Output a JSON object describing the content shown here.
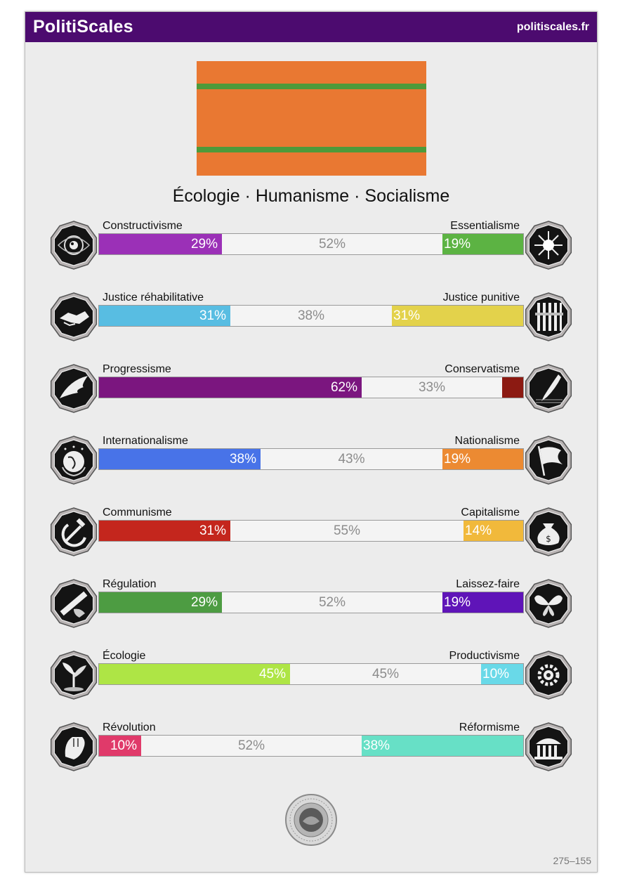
{
  "header": {
    "brand": "PolitiScales",
    "site": "politiscales.fr"
  },
  "flag": {
    "background": "#e97832",
    "stripe_color": "#4e9a3a"
  },
  "slogan": "Écologie · Humanisme · Socialisme",
  "axes": [
    {
      "left_label": "Constructivisme",
      "right_label": "Essentialisme",
      "left_pct": 29,
      "mid_pct": 52,
      "right_pct": 19,
      "left_color": "#9b30b7",
      "right_color": "#5cb343",
      "left_text": "29%",
      "mid_text": "52%",
      "right_text": "19%",
      "left_icon": "eye-icon",
      "right_icon": "dna-flower-icon"
    },
    {
      "left_label": "Justice réhabilitative",
      "right_label": "Justice punitive",
      "left_pct": 31,
      "mid_pct": 38,
      "right_pct": 31,
      "left_color": "#58bde2",
      "right_color": "#e3d24b",
      "left_text": "31%",
      "mid_text": "38%",
      "right_text": "31%",
      "left_icon": "handshake-icon",
      "right_icon": "prison-bars-icon"
    },
    {
      "left_label": "Progressisme",
      "right_label": "Conservatisme",
      "left_pct": 62,
      "mid_pct": 33,
      "right_pct": 5,
      "left_color": "#7b167f",
      "right_color": "#8c1a12",
      "left_text": "62%",
      "mid_text": "33%",
      "right_text": "",
      "left_icon": "wing-icon",
      "right_icon": "quill-pen-icon"
    },
    {
      "left_label": "Internationalisme",
      "right_label": "Nationalisme",
      "left_pct": 38,
      "mid_pct": 43,
      "right_pct": 19,
      "left_color": "#4873e8",
      "right_color": "#ec8a32",
      "left_text": "38%",
      "mid_text": "43%",
      "right_text": "19%",
      "left_icon": "globe-icon",
      "right_icon": "flag-icon"
    },
    {
      "left_label": "Communisme",
      "right_label": "Capitalisme",
      "left_pct": 31,
      "mid_pct": 55,
      "right_pct": 14,
      "left_color": "#c4261d",
      "right_color": "#f1b93b",
      "left_text": "31%",
      "mid_text": "55%",
      "right_text": "14%",
      "left_icon": "hammer-sickle-icon",
      "right_icon": "money-bag-icon"
    },
    {
      "left_label": "Régulation",
      "right_label": "Laissez-faire",
      "left_pct": 29,
      "mid_pct": 52,
      "right_pct": 19,
      "left_color": "#4d9c42",
      "right_color": "#5f14b8",
      "left_text": "29%",
      "mid_text": "52%",
      "right_text": "19%",
      "left_icon": "ruler-hand-icon",
      "right_icon": "butterfly-icon"
    },
    {
      "left_label": "Écologie",
      "right_label": "Productivisme",
      "left_pct": 45,
      "mid_pct": 45,
      "right_pct": 10,
      "left_color": "#aee545",
      "right_color": "#69d9e8",
      "left_text": "45%",
      "mid_text": "45%",
      "right_text": "10%",
      "left_icon": "plant-icon",
      "right_icon": "gear-icon"
    },
    {
      "left_label": "Révolution",
      "right_label": "Réformisme",
      "left_pct": 10,
      "mid_pct": 52,
      "right_pct": 38,
      "left_color": "#e03a6a",
      "right_color": "#67e0c6",
      "left_text": "10%",
      "mid_text": "52%",
      "right_text": "38%",
      "left_icon": "fist-icon",
      "right_icon": "parliament-icon"
    }
  ],
  "code": "275–155"
}
